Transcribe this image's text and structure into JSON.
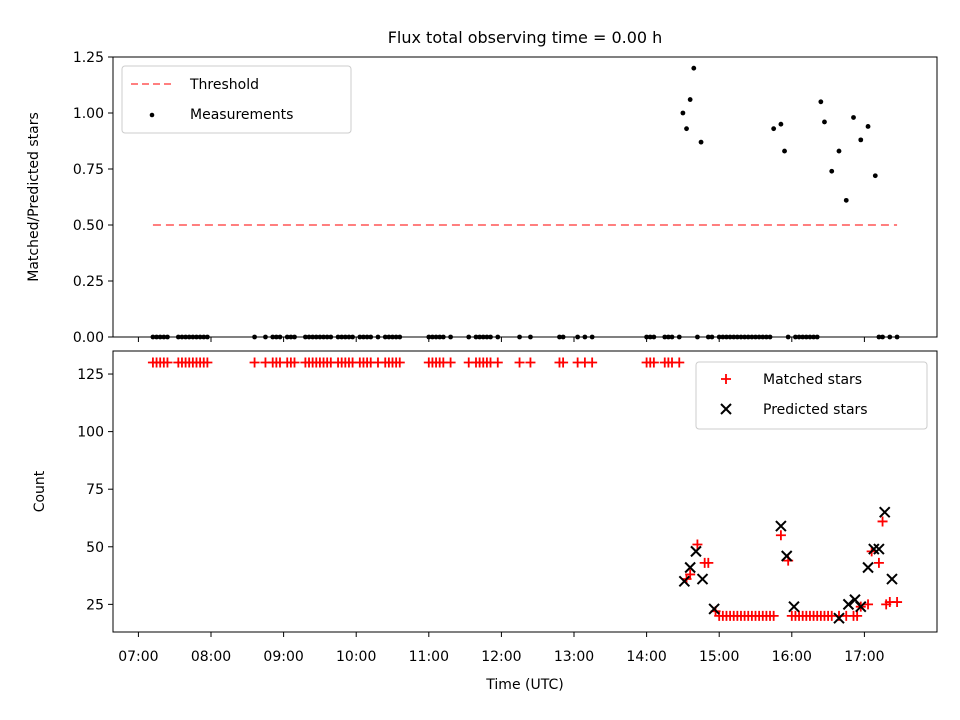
{
  "title": "Flux total observing time = 0.00 h",
  "colors": {
    "threshold": "#ff7f7f",
    "measurements": "#000000",
    "matched": "#ff0000",
    "predicted": "#000000"
  },
  "chart_data": [
    {
      "type": "scatter",
      "ylabel": "Matched/Predicted stars",
      "ylim": [
        0,
        1.25
      ],
      "yticks": [
        "0.00",
        "0.25",
        "0.50",
        "0.75",
        "1.00",
        "1.25"
      ],
      "legend": {
        "placement": "top-left",
        "entries": [
          "Threshold",
          "Measurements"
        ]
      },
      "threshold": {
        "name": "Threshold",
        "y": 0.5,
        "x_range": [
          7.2,
          17.45
        ]
      },
      "series": [
        {
          "name": "Measurements",
          "x": [
            7.2,
            7.25,
            7.3,
            7.35,
            7.4,
            7.55,
            7.6,
            7.65,
            7.7,
            7.75,
            7.8,
            7.85,
            7.9,
            7.95,
            8.6,
            8.75,
            8.85,
            8.9,
            8.95,
            9.05,
            9.1,
            9.15,
            9.3,
            9.35,
            9.4,
            9.45,
            9.5,
            9.55,
            9.6,
            9.65,
            9.75,
            9.8,
            9.85,
            9.9,
            9.95,
            10.05,
            10.1,
            10.15,
            10.2,
            10.3,
            10.4,
            10.45,
            10.5,
            10.55,
            10.6,
            11.0,
            11.05,
            11.1,
            11.15,
            11.2,
            11.3,
            11.55,
            11.65,
            11.7,
            11.75,
            11.8,
            11.85,
            11.95,
            12.25,
            12.4,
            12.8,
            12.85,
            13.05,
            13.15,
            13.25,
            14.0,
            14.05,
            14.1,
            14.25,
            14.3,
            14.35,
            14.45,
            14.5,
            14.55,
            14.6,
            14.65,
            14.7,
            14.75,
            14.85,
            14.9,
            15.0,
            15.05,
            15.1,
            15.15,
            15.2,
            15.25,
            15.3,
            15.35,
            15.4,
            15.45,
            15.5,
            15.55,
            15.6,
            15.65,
            15.7,
            15.75,
            15.85,
            15.9,
            15.95,
            16.05,
            16.1,
            16.15,
            16.2,
            16.25,
            16.3,
            16.35,
            16.4,
            16.45,
            16.55,
            16.65,
            16.75,
            16.85,
            16.95,
            17.05,
            17.15,
            17.2,
            17.25,
            17.35,
            17.45
          ],
          "y": [
            0,
            0,
            0,
            0,
            0,
            0,
            0,
            0,
            0,
            0,
            0,
            0,
            0,
            0,
            0,
            0,
            0,
            0,
            0,
            0,
            0,
            0,
            0,
            0,
            0,
            0,
            0,
            0,
            0,
            0,
            0,
            0,
            0,
            0,
            0,
            0,
            0,
            0,
            0,
            0,
            0,
            0,
            0,
            0,
            0,
            0,
            0,
            0,
            0,
            0,
            0,
            0,
            0,
            0,
            0,
            0,
            0,
            0,
            0,
            0,
            0,
            0,
            0,
            0,
            0,
            0,
            0,
            0,
            0,
            0,
            0,
            0,
            1.0,
            0.93,
            1.06,
            1.2,
            0,
            0.87,
            0,
            0,
            0,
            0,
            0,
            0,
            0,
            0,
            0,
            0,
            0,
            0,
            0,
            0,
            0,
            0,
            0,
            0.93,
            0.95,
            0.83,
            0,
            0,
            0,
            0,
            0,
            0,
            0,
            0,
            1.05,
            0.96,
            0.74,
            0.83,
            0.61,
            0.98,
            0.88,
            0.94,
            0.72,
            0,
            0,
            0,
            0
          ]
        }
      ]
    },
    {
      "type": "scatter",
      "xlabel": "Time (UTC)",
      "ylabel": "Count",
      "ylim": [
        13,
        135
      ],
      "xlim": [
        6.65,
        18.0
      ],
      "xticks": [
        "07:00",
        "08:00",
        "09:00",
        "10:00",
        "11:00",
        "12:00",
        "13:00",
        "14:00",
        "15:00",
        "16:00",
        "17:00"
      ],
      "yticks": [
        "25",
        "50",
        "75",
        "100",
        "125"
      ],
      "legend": {
        "placement": "top-right",
        "entries": [
          "Matched stars",
          "Predicted stars"
        ]
      },
      "series": [
        {
          "name": "Matched stars",
          "x": [
            7.2,
            7.25,
            7.3,
            7.35,
            7.4,
            7.55,
            7.6,
            7.65,
            7.7,
            7.75,
            7.8,
            7.85,
            7.9,
            7.95,
            8.6,
            8.75,
            8.85,
            8.9,
            8.95,
            9.05,
            9.1,
            9.15,
            9.3,
            9.35,
            9.4,
            9.45,
            9.5,
            9.55,
            9.6,
            9.65,
            9.75,
            9.8,
            9.85,
            9.9,
            9.95,
            10.05,
            10.1,
            10.15,
            10.2,
            10.3,
            10.4,
            10.45,
            10.5,
            10.55,
            10.6,
            11.0,
            11.05,
            11.1,
            11.15,
            11.2,
            11.3,
            11.55,
            11.65,
            11.7,
            11.75,
            11.8,
            11.85,
            11.95,
            12.25,
            12.4,
            12.8,
            12.85,
            13.05,
            13.15,
            13.25,
            14.0,
            14.05,
            14.1,
            14.25,
            14.3,
            14.35,
            14.45,
            14.55,
            14.6,
            14.7,
            14.8,
            14.85,
            14.95,
            15.0,
            15.05,
            15.1,
            15.15,
            15.2,
            15.25,
            15.3,
            15.35,
            15.4,
            15.45,
            15.5,
            15.55,
            15.6,
            15.65,
            15.7,
            15.75,
            15.85,
            15.95,
            16.0,
            16.05,
            16.1,
            16.15,
            16.2,
            16.25,
            16.3,
            16.35,
            16.4,
            16.45,
            16.5,
            16.55,
            16.65,
            16.75,
            16.85,
            16.9,
            16.95,
            17.05,
            17.1,
            17.2,
            17.25,
            17.3,
            17.35,
            17.45
          ],
          "y": [
            130,
            130,
            130,
            130,
            130,
            130,
            130,
            130,
            130,
            130,
            130,
            130,
            130,
            130,
            130,
            130,
            130,
            130,
            130,
            130,
            130,
            130,
            130,
            130,
            130,
            130,
            130,
            130,
            130,
            130,
            130,
            130,
            130,
            130,
            130,
            130,
            130,
            130,
            130,
            130,
            130,
            130,
            130,
            130,
            130,
            130,
            130,
            130,
            130,
            130,
            130,
            130,
            130,
            130,
            130,
            130,
            130,
            130,
            130,
            130,
            130,
            130,
            130,
            130,
            130,
            130,
            130,
            130,
            130,
            130,
            130,
            130,
            36,
            38,
            51,
            43,
            43,
            22,
            20,
            20,
            20,
            20,
            20,
            20,
            20,
            20,
            20,
            20,
            20,
            20,
            20,
            20,
            20,
            20,
            55,
            44,
            20,
            20,
            20,
            20,
            20,
            20,
            20,
            20,
            20,
            20,
            20,
            20,
            20,
            20,
            20,
            20,
            24,
            25,
            48,
            43,
            61,
            25,
            26,
            26
          ]
        },
        {
          "name": "Predicted stars",
          "x": [
            14.52,
            14.6,
            14.68,
            14.77,
            14.93,
            15.85,
            15.93,
            16.03,
            16.65,
            16.78,
            16.87,
            16.95,
            17.05,
            17.13,
            17.2,
            17.28,
            17.38
          ],
          "y": [
            35,
            41,
            48,
            36,
            23,
            59,
            46,
            24,
            19,
            25,
            27,
            24,
            41,
            49,
            49,
            65,
            36
          ]
        }
      ]
    }
  ]
}
